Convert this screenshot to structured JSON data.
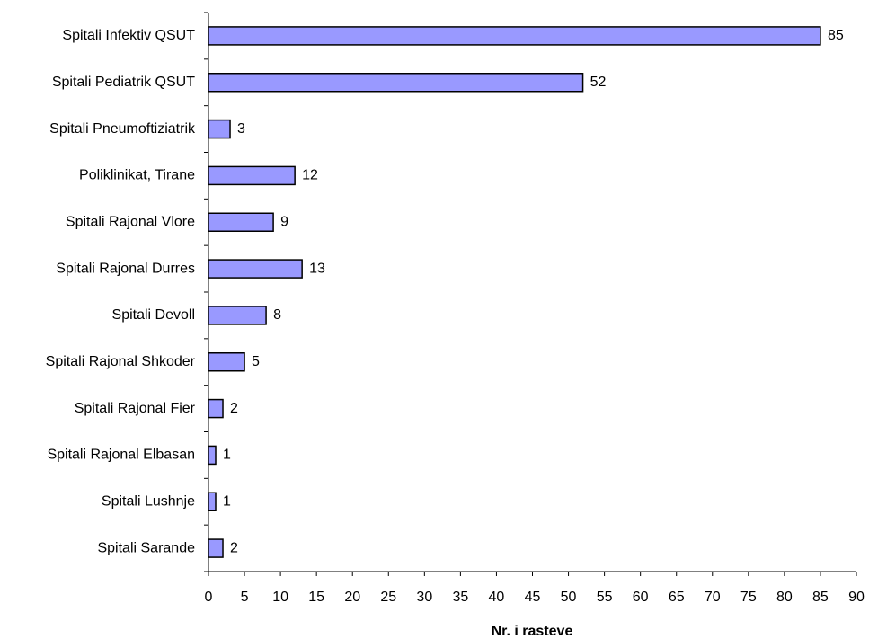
{
  "chart_data": {
    "type": "bar",
    "orientation": "horizontal",
    "xlabel": "Nr. i rasteve",
    "categories": [
      "Spitali Infektiv QSUT",
      "Spitali Pediatrik QSUT",
      "Spitali Pneumoftiziatrik",
      "Poliklinikat, Tirane",
      "Spitali Rajonal Vlore",
      "Spitali Rajonal Durres",
      "Spitali Devoll",
      "Spitali Rajonal Shkoder",
      "Spitali Rajonal Fier",
      "Spitali Rajonal Elbasan",
      "Spitali Lushnje",
      "Spitali Sarande"
    ],
    "values": [
      85,
      52,
      3,
      12,
      9,
      13,
      8,
      5,
      2,
      1,
      1,
      2
    ],
    "color": "#9999ff",
    "xlim": [
      0,
      90
    ],
    "xticks": [
      0,
      5,
      10,
      15,
      20,
      25,
      30,
      35,
      40,
      45,
      50,
      55,
      60,
      65,
      70,
      75,
      80,
      85,
      90
    ],
    "grid": false
  }
}
